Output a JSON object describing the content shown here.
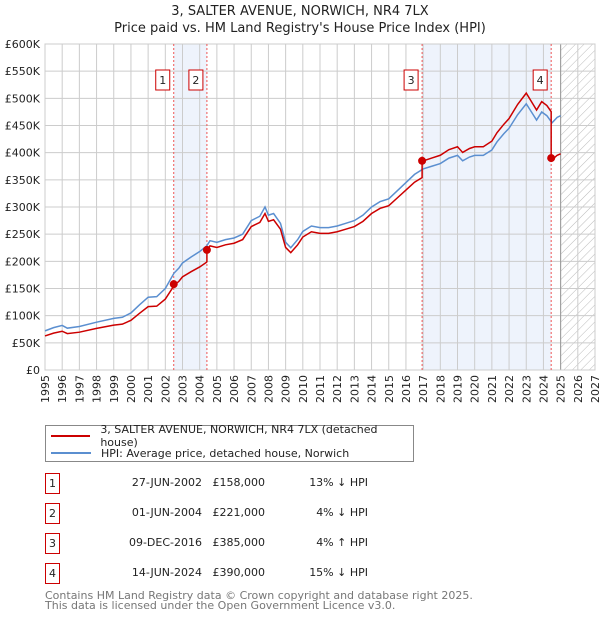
{
  "title": "3, SALTER AVENUE, NORWICH, NR4 7LX",
  "subtitle": "Price paid vs. HM Land Registry's House Price Index (HPI)",
  "chart_data": {
    "type": "line",
    "title": "3, SALTER AVENUE, NORWICH, NR4 7LX — Price paid vs. HM Land Registry's House Price Index (HPI)",
    "xlim": [
      1995,
      2027
    ],
    "ylim": [
      0,
      600000
    ],
    "grid": true,
    "x_ticks": [
      "1995",
      "1996",
      "1997",
      "1998",
      "1999",
      "2000",
      "2001",
      "2002",
      "2003",
      "2004",
      "2005",
      "2006",
      "2007",
      "2008",
      "2009",
      "2010",
      "2011",
      "2012",
      "2013",
      "2014",
      "2015",
      "2016",
      "2017",
      "2018",
      "2019",
      "2020",
      "2021",
      "2022",
      "2023",
      "2024",
      "2025",
      "2026",
      "2027"
    ],
    "y_ticks": [
      {
        "v": 0,
        "label": "£0"
      },
      {
        "v": 50000,
        "label": "£50K"
      },
      {
        "v": 100000,
        "label": "£100K"
      },
      {
        "v": 150000,
        "label": "£150K"
      },
      {
        "v": 200000,
        "label": "£200K"
      },
      {
        "v": 250000,
        "label": "£250K"
      },
      {
        "v": 300000,
        "label": "£300K"
      },
      {
        "v": 350000,
        "label": "£350K"
      },
      {
        "v": 400000,
        "label": "£400K"
      },
      {
        "v": 450000,
        "label": "£450K"
      },
      {
        "v": 500000,
        "label": "£500K"
      },
      {
        "v": 550000,
        "label": "£550K"
      },
      {
        "v": 600000,
        "label": "£600K"
      }
    ],
    "forecast_hatched_from": 2025.0,
    "colors": {
      "property": "#cc0000",
      "hpi": "#5b8fd0",
      "shade": "#eef3fc"
    },
    "hpi_series": {
      "name": "HPI: Average price, detached house, Norwich",
      "x": [
        1995.0,
        1995.5,
        1996.0,
        1996.3,
        1997.0,
        1998.0,
        1999.0,
        1999.5,
        2000.0,
        2000.5,
        2001.0,
        2001.5,
        2002.0,
        2002.5,
        2002.8,
        2003.0,
        2003.5,
        2004.0,
        2004.4,
        2004.6,
        2005.0,
        2005.5,
        2006.0,
        2006.5,
        2007.0,
        2007.5,
        2007.8,
        2008.0,
        2008.3,
        2008.7,
        2009.0,
        2009.3,
        2009.7,
        2010.0,
        2010.5,
        2011.0,
        2011.5,
        2012.0,
        2012.5,
        2013.0,
        2013.5,
        2014.0,
        2014.5,
        2015.0,
        2015.5,
        2016.0,
        2016.5,
        2017.0,
        2017.5,
        2018.0,
        2018.5,
        2019.0,
        2019.3,
        2019.7,
        2020.0,
        2020.5,
        2021.0,
        2021.3,
        2021.7,
        2022.0,
        2022.5,
        2023.0,
        2023.4,
        2023.6,
        2023.9,
        2024.2,
        2024.5,
        2024.8,
        2025.0
      ],
      "values": [
        72000,
        78000,
        82000,
        77000,
        80000,
        88000,
        95000,
        97000,
        105000,
        120000,
        134000,
        135000,
        150000,
        178000,
        188000,
        197000,
        208000,
        218000,
        228000,
        238000,
        235000,
        240000,
        243000,
        250000,
        275000,
        283000,
        300000,
        285000,
        288000,
        270000,
        235000,
        225000,
        240000,
        255000,
        265000,
        262000,
        262000,
        265000,
        270000,
        275000,
        285000,
        300000,
        310000,
        315000,
        330000,
        345000,
        360000,
        370000,
        375000,
        380000,
        390000,
        395000,
        385000,
        392000,
        395000,
        395000,
        405000,
        420000,
        435000,
        445000,
        470000,
        490000,
        470000,
        460000,
        475000,
        468000,
        455000,
        465000,
        468000
      ]
    },
    "property_series": {
      "name": "3, SALTER AVENUE, NORWICH, NR4 7LX (detached house)",
      "note": "HPI-indexed from sale prices",
      "ratio_segments": [
        {
          "until": 2004.42,
          "ratio": 0.87
        },
        {
          "until": 2016.94,
          "ratio": 0.96
        },
        {
          "until": 2024.45,
          "ratio": 1.04
        },
        {
          "until": 2025.0,
          "ratio": 0.85
        }
      ]
    },
    "sales": [
      {
        "n": "1",
        "x": 2002.49,
        "value": 158000,
        "date": "27-JUN-2002",
        "price": "£158,000",
        "hpi": "13% ↓ HPI"
      },
      {
        "n": "2",
        "x": 2004.42,
        "value": 221000,
        "date": "01-JUN-2004",
        "price": "£221,000",
        "hpi": "4% ↓ HPI"
      },
      {
        "n": "3",
        "x": 2016.94,
        "value": 385000,
        "date": "09-DEC-2016",
        "price": "£385,000",
        "hpi": "4% ↑ HPI"
      },
      {
        "n": "4",
        "x": 2024.45,
        "value": 390000,
        "date": "14-JUN-2024",
        "price": "£390,000",
        "hpi": "15% ↓ HPI"
      }
    ]
  },
  "legend": {
    "property": "3, SALTER AVENUE, NORWICH, NR4 7LX (detached house)",
    "hpi": "HPI: Average price, detached house, Norwich"
  },
  "footer": {
    "line1": "Contains HM Land Registry data © Crown copyright and database right 2025.",
    "line2": "This data is licensed under the Open Government Licence v3.0."
  }
}
